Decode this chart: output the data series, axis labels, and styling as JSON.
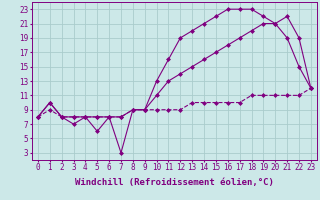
{
  "line1_x": [
    0,
    1,
    2,
    3,
    4,
    5,
    6,
    7,
    8,
    9,
    10,
    11,
    12,
    13,
    14,
    15,
    16,
    17,
    18,
    19,
    20,
    21,
    22,
    23
  ],
  "line1_y": [
    8,
    10,
    8,
    7,
    8,
    6,
    8,
    3,
    9,
    9,
    13,
    16,
    19,
    20,
    21,
    22,
    23,
    23,
    23,
    22,
    21,
    19,
    15,
    12
  ],
  "line2_x": [
    0,
    1,
    2,
    3,
    4,
    5,
    6,
    7,
    8,
    9,
    10,
    11,
    12,
    13,
    14,
    15,
    16,
    17,
    18,
    19,
    20,
    21,
    22,
    23
  ],
  "line2_y": [
    8,
    10,
    8,
    8,
    8,
    8,
    8,
    8,
    9,
    9,
    11,
    13,
    14,
    15,
    16,
    17,
    18,
    19,
    20,
    21,
    21,
    22,
    19,
    12
  ],
  "line3_x": [
    0,
    1,
    2,
    3,
    4,
    5,
    6,
    7,
    8,
    9,
    10,
    11,
    12,
    13,
    14,
    15,
    16,
    17,
    18,
    19,
    20,
    21,
    22,
    23
  ],
  "line3_y": [
    8,
    9,
    8,
    8,
    8,
    8,
    8,
    8,
    9,
    9,
    9,
    9,
    9,
    10,
    10,
    10,
    10,
    10,
    11,
    11,
    11,
    11,
    11,
    12
  ],
  "color": "#800080",
  "bg_color": "#cce8e8",
  "grid_color": "#aacccc",
  "xlabel": "Windchill (Refroidissement éolien,°C)",
  "xlabel_fontsize": 6.5,
  "xlim": [
    -0.5,
    23.5
  ],
  "ylim": [
    2,
    24
  ],
  "xticks": [
    0,
    1,
    2,
    3,
    4,
    5,
    6,
    7,
    8,
    9,
    10,
    11,
    12,
    13,
    14,
    15,
    16,
    17,
    18,
    19,
    20,
    21,
    22,
    23
  ],
  "yticks": [
    3,
    5,
    7,
    9,
    11,
    13,
    15,
    17,
    19,
    21,
    23
  ],
  "tick_fontsize": 5.5,
  "marker": "D",
  "markersize": 2.0,
  "linewidth": 0.8
}
